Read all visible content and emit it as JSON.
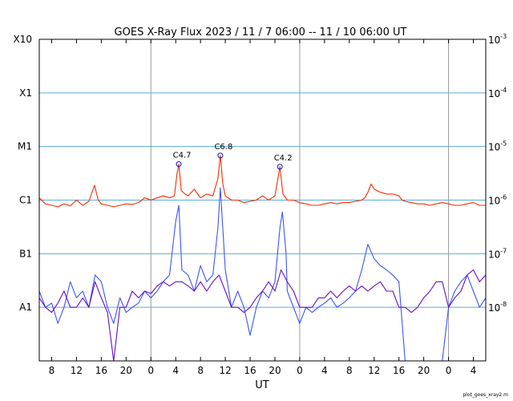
{
  "chart_data": {
    "type": "line",
    "title": "GOES X-Ray Flux   2023 / 11 /  7   06:00 -- 11 / 10   06:00   UT",
    "xlabel": "UT",
    "x_unit": "hours from 2023-11-07 06:00 UT",
    "xlim": [
      0,
      72
    ],
    "x_ticks": [
      {
        "t": 2,
        "label": "8"
      },
      {
        "t": 6,
        "label": "12"
      },
      {
        "t": 10,
        "label": "16"
      },
      {
        "t": 14,
        "label": "20"
      },
      {
        "t": 18,
        "label": "0"
      },
      {
        "t": 22,
        "label": "4"
      },
      {
        "t": 26,
        "label": "8"
      },
      {
        "t": 30,
        "label": "12"
      },
      {
        "t": 34,
        "label": "16"
      },
      {
        "t": 38,
        "label": "20"
      },
      {
        "t": 42,
        "label": "0"
      },
      {
        "t": 46,
        "label": "4"
      },
      {
        "t": 50,
        "label": "8"
      },
      {
        "t": 54,
        "label": "12"
      },
      {
        "t": 58,
        "label": "16"
      },
      {
        "t": 62,
        "label": "20"
      },
      {
        "t": 66,
        "label": "0"
      },
      {
        "t": 70,
        "label": "4"
      }
    ],
    "day_boundaries": [
      18,
      42,
      66
    ],
    "y_scale": "log",
    "ylim": [
      1e-09,
      0.001
    ],
    "y_left_ticks": [
      {
        "value": 1e-08,
        "label": "A1"
      },
      {
        "value": 1e-07,
        "label": "B1"
      },
      {
        "value": 1e-06,
        "label": "C1"
      },
      {
        "value": 1e-05,
        "label": "M1"
      },
      {
        "value": 0.0001,
        "label": "X1"
      },
      {
        "value": 0.001,
        "label": "X10"
      }
    ],
    "y_right_ticks": [
      {
        "value": 1e-08,
        "base": "10",
        "exp": "-8"
      },
      {
        "value": 1e-07,
        "base": "10",
        "exp": "-7"
      },
      {
        "value": 1e-06,
        "base": "10",
        "exp": "-6"
      },
      {
        "value": 1e-05,
        "base": "10",
        "exp": "-5"
      },
      {
        "value": 0.0001,
        "base": "10",
        "exp": "-4"
      },
      {
        "value": 0.001,
        "base": "10",
        "exp": "-3"
      }
    ],
    "grid": "horizontal at each decade",
    "series": [
      {
        "color": "#ff2a00",
        "points": [
          [
            0,
            1.1e-06
          ],
          [
            1,
            8.5e-07
          ],
          [
            2,
            8e-07
          ],
          [
            3,
            7.5e-07
          ],
          [
            4,
            8.5e-07
          ],
          [
            5,
            7.8e-07
          ],
          [
            6,
            1e-06
          ],
          [
            7,
            8e-07
          ],
          [
            8,
            9.5e-07
          ],
          [
            8.9,
            1.9e-06
          ],
          [
            9.5,
            1e-06
          ],
          [
            10,
            8.5e-07
          ],
          [
            11,
            8e-07
          ],
          [
            12,
            7.5e-07
          ],
          [
            13,
            8e-07
          ],
          [
            14,
            8.5e-07
          ],
          [
            15,
            8.3e-07
          ],
          [
            16,
            9e-07
          ],
          [
            17,
            1.1e-06
          ],
          [
            18,
            1e-06
          ],
          [
            19,
            1.1e-06
          ],
          [
            20,
            1.2e-06
          ],
          [
            21,
            1.1e-06
          ],
          [
            21.8,
            1.2e-06
          ],
          [
            22.2,
            3e-06
          ],
          [
            22.5,
            4.7e-06
          ],
          [
            22.9,
            1.5e-06
          ],
          [
            23.5,
            1.3e-06
          ],
          [
            24,
            1.2e-06
          ],
          [
            25,
            1.6e-06
          ],
          [
            26,
            1.1e-06
          ],
          [
            27,
            1.3e-06
          ],
          [
            28,
            1.2e-06
          ],
          [
            28.8,
            2.5e-06
          ],
          [
            29.2,
            6.8e-06
          ],
          [
            29.6,
            2e-06
          ],
          [
            30,
            1.2e-06
          ],
          [
            31,
            1e-06
          ],
          [
            32,
            1e-06
          ],
          [
            33,
            9e-07
          ],
          [
            34,
            9.5e-07
          ],
          [
            35,
            1e-06
          ],
          [
            36,
            1.2e-06
          ],
          [
            37,
            1e-06
          ],
          [
            38,
            1.2e-06
          ],
          [
            38.8,
            4.2e-06
          ],
          [
            39.3,
            1.3e-06
          ],
          [
            40,
            1e-06
          ],
          [
            41,
            1e-06
          ],
          [
            42,
            9e-07
          ],
          [
            43,
            8.5e-07
          ],
          [
            44,
            8e-07
          ],
          [
            45,
            8e-07
          ],
          [
            46,
            8.5e-07
          ],
          [
            47,
            9e-07
          ],
          [
            48,
            8.5e-07
          ],
          [
            49,
            9e-07
          ],
          [
            50,
            9e-07
          ],
          [
            51,
            9.5e-07
          ],
          [
            52,
            1e-06
          ],
          [
            52.5,
            1.1e-06
          ],
          [
            53,
            1.4e-06
          ],
          [
            53.5,
            2e-06
          ],
          [
            54,
            1.6e-06
          ],
          [
            55,
            1.4e-06
          ],
          [
            56,
            1.3e-06
          ],
          [
            57,
            1.3e-06
          ],
          [
            58,
            1.2e-06
          ],
          [
            58.5,
            1e-06
          ],
          [
            59,
            9.5e-07
          ],
          [
            60,
            9e-07
          ],
          [
            61,
            8.5e-07
          ],
          [
            62,
            8.5e-07
          ],
          [
            63,
            8e-07
          ],
          [
            64,
            8.5e-07
          ],
          [
            65,
            9e-07
          ],
          [
            66,
            8.5e-07
          ],
          [
            67,
            8e-07
          ],
          [
            68,
            8e-07
          ],
          [
            69,
            8.5e-07
          ],
          [
            70,
            9e-07
          ],
          [
            71,
            8e-07
          ],
          [
            72,
            8e-07
          ]
        ]
      },
      {
        "color": "#3a55ff",
        "points": [
          [
            0,
            2e-08
          ],
          [
            1,
            1e-08
          ],
          [
            2,
            1.2e-08
          ],
          [
            3,
            5e-09
          ],
          [
            4,
            1e-08
          ],
          [
            5,
            3e-08
          ],
          [
            6,
            1.5e-08
          ],
          [
            7,
            2e-08
          ],
          [
            8,
            1e-08
          ],
          [
            9,
            4e-08
          ],
          [
            10,
            3e-08
          ],
          [
            11,
            1e-08
          ],
          [
            12,
            5e-09
          ],
          [
            13,
            1.5e-08
          ],
          [
            14,
            8e-09
          ],
          [
            15,
            1e-08
          ],
          [
            16,
            1.2e-08
          ],
          [
            17,
            2e-08
          ],
          [
            18,
            1.5e-08
          ],
          [
            19,
            2e-08
          ],
          [
            20,
            3e-08
          ],
          [
            21,
            4e-08
          ],
          [
            22,
            4e-07
          ],
          [
            22.5,
            8e-07
          ],
          [
            23,
            5e-08
          ],
          [
            24,
            4e-08
          ],
          [
            25,
            2e-08
          ],
          [
            26,
            6e-08
          ],
          [
            27,
            3e-08
          ],
          [
            28,
            4e-08
          ],
          [
            28.8,
            3e-07
          ],
          [
            29.2,
            1.7e-06
          ],
          [
            30,
            5e-08
          ],
          [
            31,
            1e-08
          ],
          [
            32,
            2e-08
          ],
          [
            33,
            1e-08
          ],
          [
            34,
            3e-09
          ],
          [
            35,
            1e-08
          ],
          [
            36,
            2e-08
          ],
          [
            37,
            1.5e-08
          ],
          [
            38,
            3e-08
          ],
          [
            38.8,
            3e-07
          ],
          [
            39.2,
            6e-07
          ],
          [
            39.8,
            1e-07
          ],
          [
            40,
            2e-08
          ],
          [
            41,
            1e-08
          ],
          [
            42,
            5e-09
          ],
          [
            43,
            1e-08
          ],
          [
            44,
            8e-09
          ],
          [
            45,
            1e-08
          ],
          [
            46,
            1.2e-08
          ],
          [
            47,
            1.5e-08
          ],
          [
            48,
            1e-08
          ],
          [
            49,
            1.2e-08
          ],
          [
            50,
            1.5e-08
          ],
          [
            51,
            2e-08
          ],
          [
            52,
            5e-08
          ],
          [
            53,
            1.5e-07
          ],
          [
            54,
            8e-08
          ],
          [
            55,
            6e-08
          ],
          [
            56,
            5e-08
          ],
          [
            57,
            4e-08
          ],
          [
            58,
            3e-08
          ],
          [
            59,
            1e-09
          ],
          [
            60,
            1e-09
          ],
          [
            61,
            1e-09
          ],
          [
            62,
            1e-09
          ],
          [
            63,
            1e-09
          ],
          [
            64,
            1e-09
          ],
          [
            65,
            1e-09
          ],
          [
            66,
            1e-08
          ],
          [
            67,
            2e-08
          ],
          [
            68,
            3e-08
          ],
          [
            69,
            4e-08
          ],
          [
            70,
            2e-08
          ],
          [
            71,
            1e-08
          ],
          [
            72,
            1.5e-08
          ]
        ]
      },
      {
        "color": "#6a0dc8",
        "points": [
          [
            0,
            1.5e-08
          ],
          [
            1,
            1e-08
          ],
          [
            2,
            8e-09
          ],
          [
            3,
            1.2e-08
          ],
          [
            4,
            2e-08
          ],
          [
            5,
            1e-08
          ],
          [
            6,
            1e-08
          ],
          [
            7,
            1.5e-08
          ],
          [
            8,
            1e-08
          ],
          [
            9,
            3e-08
          ],
          [
            10,
            1.5e-08
          ],
          [
            11,
            8e-09
          ],
          [
            12,
            1e-09
          ],
          [
            13,
            1e-08
          ],
          [
            14,
            1e-08
          ],
          [
            15,
            2e-08
          ],
          [
            16,
            1.5e-08
          ],
          [
            17,
            2e-08
          ],
          [
            18,
            1.8e-08
          ],
          [
            19,
            2.5e-08
          ],
          [
            20,
            3e-08
          ],
          [
            21,
            2.5e-08
          ],
          [
            22,
            3e-08
          ],
          [
            23,
            3e-08
          ],
          [
            24,
            2.5e-08
          ],
          [
            25,
            2e-08
          ],
          [
            26,
            3e-08
          ],
          [
            27,
            2e-08
          ],
          [
            28,
            3e-08
          ],
          [
            29,
            4e-08
          ],
          [
            30,
            2e-08
          ],
          [
            31,
            1e-08
          ],
          [
            32,
            1e-08
          ],
          [
            33,
            8e-09
          ],
          [
            34,
            1e-08
          ],
          [
            35,
            1.5e-08
          ],
          [
            36,
            2e-08
          ],
          [
            37,
            3e-08
          ],
          [
            38,
            2e-08
          ],
          [
            39,
            5e-08
          ],
          [
            40,
            3e-08
          ],
          [
            41,
            2e-08
          ],
          [
            42,
            1e-08
          ],
          [
            43,
            1e-08
          ],
          [
            44,
            1e-08
          ],
          [
            45,
            1.5e-08
          ],
          [
            46,
            1.5e-08
          ],
          [
            47,
            2e-08
          ],
          [
            48,
            1.5e-08
          ],
          [
            49,
            2e-08
          ],
          [
            50,
            2.5e-08
          ],
          [
            51,
            2e-08
          ],
          [
            52,
            2.5e-08
          ],
          [
            53,
            2e-08
          ],
          [
            54,
            2.5e-08
          ],
          [
            55,
            3e-08
          ],
          [
            56,
            2e-08
          ],
          [
            57,
            2e-08
          ],
          [
            58,
            1e-08
          ],
          [
            59,
            1e-08
          ],
          [
            60,
            8e-09
          ],
          [
            61,
            1e-08
          ],
          [
            62,
            1.5e-08
          ],
          [
            63,
            2e-08
          ],
          [
            64,
            3e-08
          ],
          [
            65,
            3e-08
          ],
          [
            66,
            1e-08
          ],
          [
            67,
            1.5e-08
          ],
          [
            68,
            2e-08
          ],
          [
            69,
            4e-08
          ],
          [
            70,
            5e-08
          ],
          [
            71,
            3e-08
          ],
          [
            72,
            4e-08
          ]
        ]
      }
    ],
    "annotations": [
      {
        "label": "C4.7",
        "t": 22.5,
        "value": 4.7e-06
      },
      {
        "label": "C6.8",
        "t": 29.2,
        "value": 6.8e-06
      },
      {
        "label": "C4.2",
        "t": 38.8,
        "value": 4.2e-06
      }
    ],
    "colors": {
      "grid": "#55b0d8",
      "vline": "#999999",
      "marker": "#1010c0",
      "frame": "#000000"
    }
  },
  "footer": "plot_goes_xray2.m"
}
